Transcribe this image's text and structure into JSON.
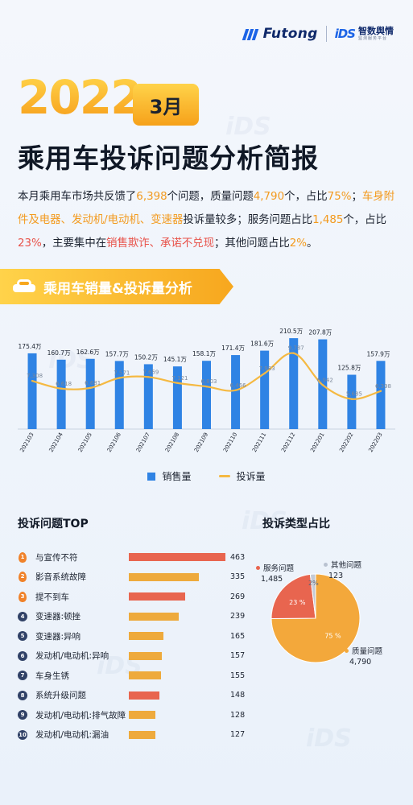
{
  "brand": {
    "primary": "Futong",
    "secondary_mark": "iDS",
    "secondary_name": "智数舆情",
    "secondary_sub": "监测服务平台"
  },
  "hero": {
    "year": "2022",
    "month": "3月",
    "title": "乘用车投诉问题分析简报"
  },
  "summary": {
    "s1": "本月乘用车市场共反馈了",
    "total": "6,398",
    "s2": "个问题，质量问题",
    "quality": "4,790",
    "s3": "个，占比",
    "quality_pct": "75%",
    "s4": "；",
    "hot_parts": "车身附件及电器、发动机/电动机、变速器",
    "s5": "投诉量较多；服务问题占比",
    "service": "1,485",
    "s6": "个，占比",
    "service_pct": "23%",
    "s7": "，主要集中在",
    "service_focus": "销售欺诈、承诺不兑现",
    "s8": "；其他问题占比",
    "other_pct": "2%",
    "s9": "。"
  },
  "section1": {
    "title": "乘用车销量&投诉量分析"
  },
  "colors": {
    "bar": "#2f83e4",
    "line": "#f5b942",
    "accent": "#f7a71e",
    "red": "#e8654f",
    "orange": "#eeaa3c"
  },
  "chart_data": [
    {
      "type": "bar",
      "categories": [
        "202103",
        "202104",
        "202105",
        "202106",
        "202107",
        "202108",
        "202109",
        "202110",
        "202111",
        "202112",
        "202201",
        "202202",
        "202203"
      ],
      "series": [
        {
          "name": "销售量",
          "values": [
            175.4,
            160.7,
            162.6,
            157.7,
            150.2,
            145.1,
            158.1,
            171.4,
            181.6,
            210.5,
            207.8,
            125.8,
            157.9
          ],
          "labels": [
            "175.4万",
            "160.7万",
            "162.6万",
            "157.7万",
            "150.2万",
            "145.1万",
            "158.1万",
            "171.4万",
            "181.6万",
            "210.5万",
            "207.8万",
            "125.8万",
            "157.9万"
          ]
        },
        {
          "name": "投诉量",
          "type": "line",
          "values": [
            7308,
            6618,
            6681,
            7571,
            7659,
            7121,
            6803,
            6466,
            7983,
            9787,
            6942,
            5685,
            6398
          ],
          "labels": [
            "7,308",
            "6,618",
            "6,681",
            "7,571",
            "7,659",
            "7,121",
            "6,803",
            "6,466",
            "7,983",
            "9,787",
            "6,942",
            "5,685",
            "6,398"
          ]
        }
      ],
      "legend": [
        "销售量",
        "投诉量"
      ],
      "legend_position": "bottom"
    },
    {
      "type": "bar",
      "title": "投诉问题TOP",
      "categories": [
        "与宣传不符",
        "影音系统故障",
        "提不到车",
        "变速器:顿挫",
        "变速器:异响",
        "发动机/电动机:异响",
        "车身生锈",
        "系统升级问题",
        "发动机/电动机:排气故障",
        "发动机/电动机:漏油"
      ],
      "values": [
        463,
        335,
        269,
        239,
        165,
        157,
        155,
        148,
        128,
        127
      ],
      "kinds": [
        "service",
        "quality",
        "service",
        "quality",
        "quality",
        "quality",
        "quality",
        "service",
        "quality",
        "quality"
      ]
    },
    {
      "type": "pie",
      "title": "投诉类型占比",
      "slices": [
        {
          "name": "质量问题",
          "value": 4790,
          "label": "4,790",
          "pct": "75 %"
        },
        {
          "name": "服务问题",
          "value": 1485,
          "label": "1,485",
          "pct": "23 %"
        },
        {
          "name": "其他问题",
          "value": 123,
          "label": "123",
          "pct": "2%"
        }
      ]
    }
  ],
  "ranks": [
    "1",
    "2",
    "3",
    "4",
    "5",
    "6",
    "7",
    "8",
    "9",
    "10"
  ]
}
